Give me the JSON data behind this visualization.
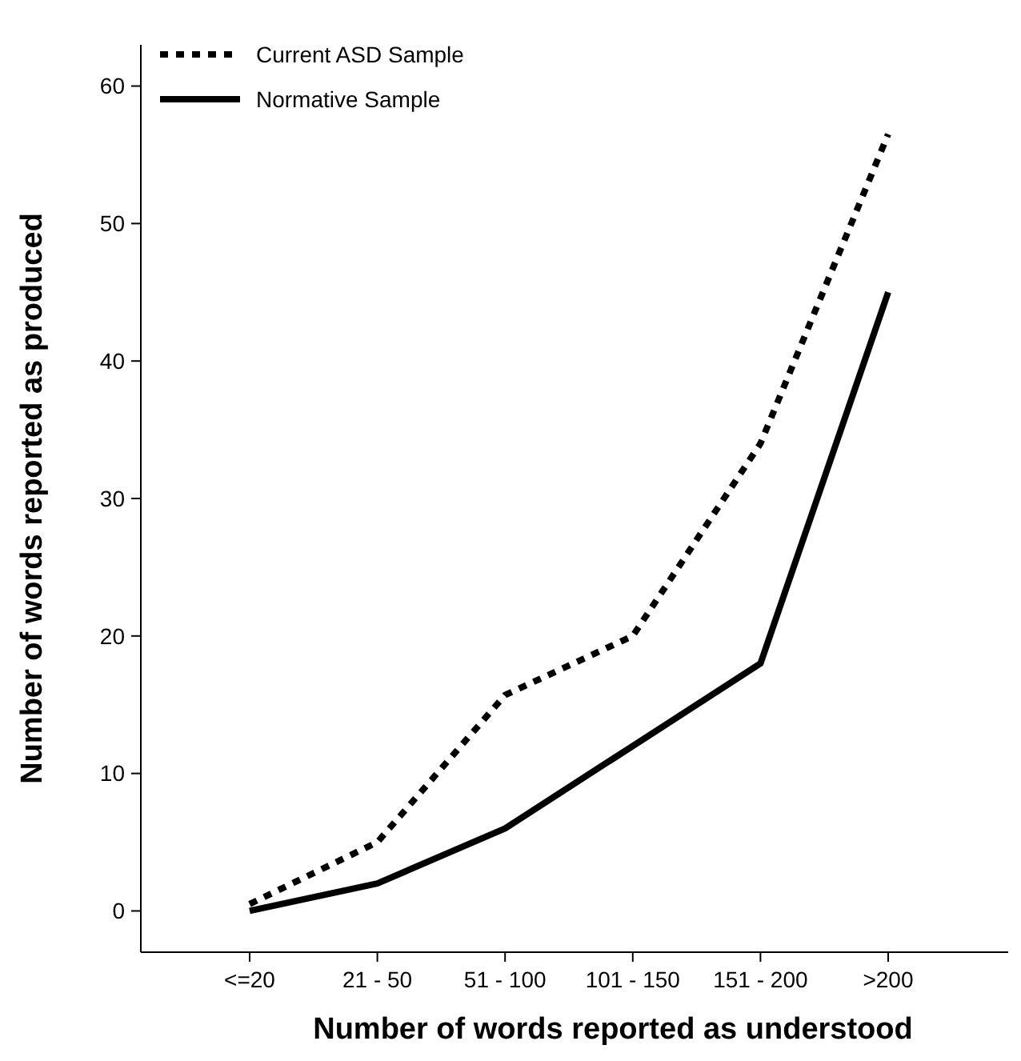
{
  "chart_data": {
    "type": "line",
    "xlabel": "Number of words reported as understood",
    "ylabel": "Number of words reported as produced",
    "categories": [
      "<=20",
      "21 - 50",
      "51 - 100",
      "101 - 150",
      "151 - 200",
      ">200"
    ],
    "series": [
      {
        "name": "Current ASD Sample",
        "color": "#000000",
        "line_style": "dotted",
        "values": [
          0.5,
          5,
          15.7,
          20,
          34,
          56.5
        ]
      },
      {
        "name": "Normative Sample",
        "color": "#000000",
        "line_style": "solid",
        "values": [
          0,
          2,
          6,
          12,
          18,
          45
        ]
      }
    ],
    "ylim": [
      -3,
      63
    ],
    "yticks": [
      0,
      10,
      20,
      30,
      40,
      50,
      60
    ],
    "grid": false,
    "legend": "top left",
    "marker": "none"
  }
}
